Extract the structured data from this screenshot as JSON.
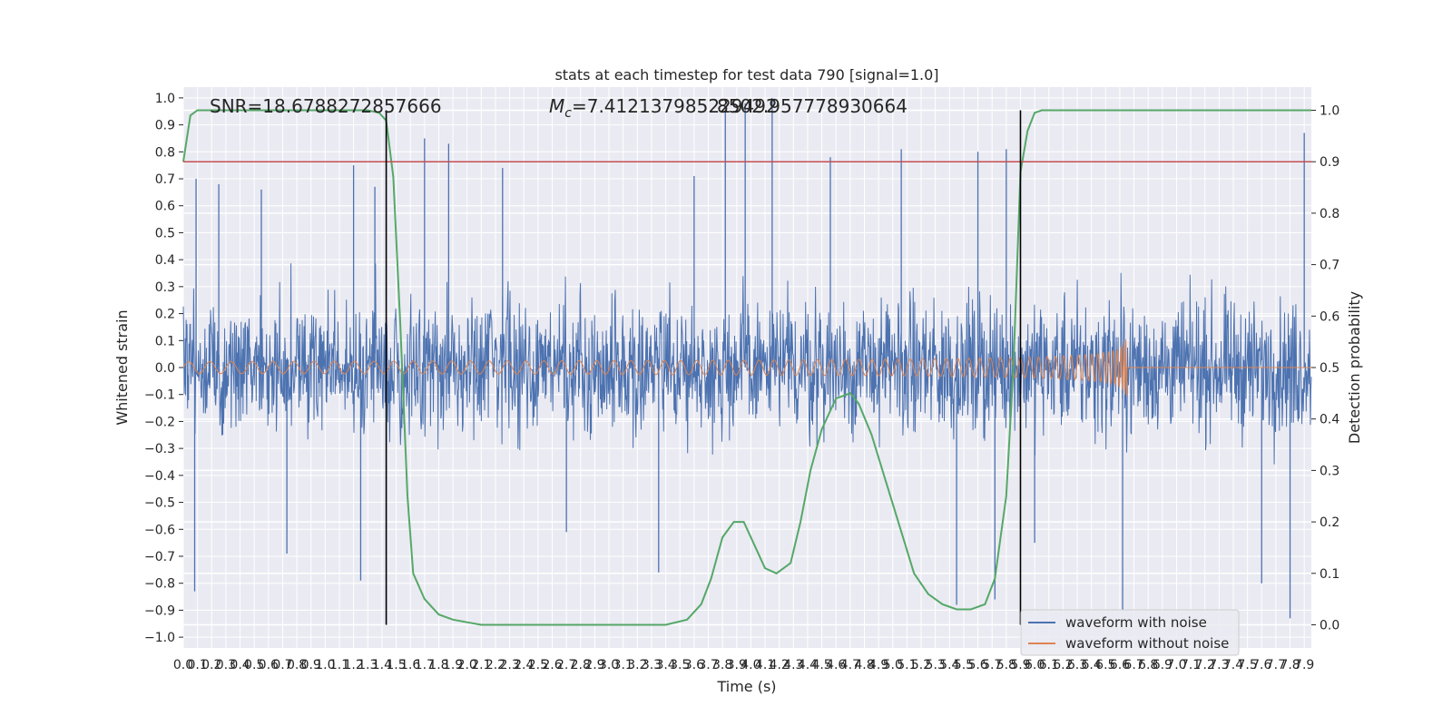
{
  "chart_data": {
    "type": "line",
    "title": "stats at each timestep for test data 790 [signal=1.0]",
    "xlabel": "Time (s)",
    "ylabel": "Whitened strain",
    "y2label": "Detection probability",
    "xlim": [
      0.0,
      7.95
    ],
    "ylim": [
      -1.04,
      1.04
    ],
    "y2lim": [
      -0.045,
      1.045
    ],
    "x_ticks": [
      "0.0",
      "0.1",
      "0.2",
      "0.3",
      "0.4",
      "0.5",
      "0.6",
      "0.7",
      "0.8",
      "0.9",
      "1.0",
      "1.1",
      "1.2",
      "1.3",
      "1.4",
      "1.5",
      "1.6",
      "1.7",
      "1.8",
      "1.9",
      "2.0",
      "2.1",
      "2.2",
      "2.3",
      "2.4",
      "2.5",
      "2.6",
      "2.7",
      "2.8",
      "2.9",
      "3.0",
      "3.1",
      "3.2",
      "3.3",
      "3.4",
      "3.5",
      "3.6",
      "3.7",
      "3.8",
      "3.9",
      "4.0",
      "4.1",
      "4.2",
      "4.3",
      "4.4",
      "4.5",
      "4.6",
      "4.7",
      "4.8",
      "4.9",
      "5.0",
      "5.1",
      "5.2",
      "5.3",
      "5.4",
      "5.5",
      "5.6",
      "5.7",
      "5.8",
      "5.9",
      "6.0",
      "6.1",
      "6.2",
      "6.3",
      "6.4",
      "6.5",
      "6.6",
      "6.7",
      "6.8",
      "6.9",
      "7.0",
      "7.1",
      "7.2",
      "7.3",
      "7.4",
      "7.5",
      "7.6",
      "7.7",
      "7.8",
      "7.9"
    ],
    "y_ticks": [
      "1.0",
      "0.9",
      "0.8",
      "0.7",
      "0.6",
      "0.5",
      "0.4",
      "0.3",
      "0.2",
      "0.1",
      "0.0",
      "−0.1",
      "−0.2",
      "−0.3",
      "−0.4",
      "−0.5",
      "−0.6",
      "−0.7",
      "−0.8",
      "−0.9",
      "−1.0"
    ],
    "y2_ticks": [
      "1.0",
      "0.9",
      "0.8",
      "0.7",
      "0.6",
      "0.5",
      "0.4",
      "0.3",
      "0.2",
      "0.1",
      "0.0"
    ],
    "annotations": {
      "snr": "SNR=18.6788272857666",
      "mc_symbol": "M",
      "mc_sub": "c",
      "mc_value": "=7.412137985229492",
      "overlap": "8502.957778930664"
    },
    "threshold": 0.9,
    "vlines_x": [
      1.43,
      5.9
    ],
    "merger_time": 6.65,
    "noise_peaks": [
      {
        "x": 0.08,
        "y": -0.83
      },
      {
        "x": 0.09,
        "y": 0.7
      },
      {
        "x": 0.25,
        "y": 0.68
      },
      {
        "x": 0.55,
        "y": 0.66
      },
      {
        "x": 0.73,
        "y": -0.69
      },
      {
        "x": 1.2,
        "y": 0.75
      },
      {
        "x": 1.25,
        "y": -0.79
      },
      {
        "x": 1.35,
        "y": 0.67
      },
      {
        "x": 1.7,
        "y": 0.85
      },
      {
        "x": 1.87,
        "y": 0.83
      },
      {
        "x": 2.25,
        "y": 0.74
      },
      {
        "x": 2.7,
        "y": -0.61
      },
      {
        "x": 3.35,
        "y": -0.76
      },
      {
        "x": 3.6,
        "y": 0.71
      },
      {
        "x": 3.82,
        "y": 0.95
      },
      {
        "x": 3.96,
        "y": 0.98
      },
      {
        "x": 4.15,
        "y": 1.0
      },
      {
        "x": 4.56,
        "y": 0.78
      },
      {
        "x": 5.06,
        "y": 0.81
      },
      {
        "x": 5.45,
        "y": -0.88
      },
      {
        "x": 5.6,
        "y": 0.8
      },
      {
        "x": 5.72,
        "y": -0.86
      },
      {
        "x": 5.8,
        "y": 0.81
      },
      {
        "x": 6.0,
        "y": -0.65
      },
      {
        "x": 6.62,
        "y": -0.9
      },
      {
        "x": 7.6,
        "y": -0.8
      },
      {
        "x": 7.8,
        "y": -0.93
      },
      {
        "x": 7.9,
        "y": 0.87
      }
    ],
    "detection_probability": {
      "x": [
        0.0,
        0.05,
        0.1,
        0.2,
        0.4,
        0.8,
        1.1,
        1.3,
        1.38,
        1.43,
        1.48,
        1.53,
        1.58,
        1.62,
        1.7,
        1.8,
        1.9,
        2.0,
        2.1,
        2.3,
        2.6,
        3.0,
        3.4,
        3.55,
        3.65,
        3.72,
        3.8,
        3.88,
        3.95,
        4.0,
        4.1,
        4.18,
        4.28,
        4.35,
        4.42,
        4.5,
        4.6,
        4.7,
        4.76,
        4.85,
        4.95,
        5.05,
        5.15,
        5.25,
        5.35,
        5.45,
        5.55,
        5.65,
        5.72,
        5.8,
        5.85,
        5.9,
        5.95,
        6.0,
        6.05,
        6.1,
        6.2,
        6.4,
        7.0,
        7.95
      ],
      "y": [
        0.9,
        0.99,
        1.0,
        1.0,
        1.0,
        1.0,
        1.0,
        1.0,
        0.995,
        0.98,
        0.87,
        0.58,
        0.25,
        0.1,
        0.05,
        0.02,
        0.01,
        0.005,
        0.0,
        0.0,
        0.0,
        0.0,
        0.0,
        0.01,
        0.04,
        0.09,
        0.17,
        0.2,
        0.2,
        0.17,
        0.11,
        0.1,
        0.12,
        0.2,
        0.3,
        0.38,
        0.44,
        0.45,
        0.43,
        0.37,
        0.28,
        0.19,
        0.1,
        0.06,
        0.04,
        0.03,
        0.03,
        0.04,
        0.09,
        0.25,
        0.5,
        0.88,
        0.96,
        0.995,
        1.0,
        1.0,
        1.0,
        1.0,
        1.0,
        1.0
      ]
    },
    "series": [
      {
        "name": "waveform with noise",
        "color": "#4c72b0"
      },
      {
        "name": "waveform without noise",
        "color": "#dd8452"
      }
    ],
    "line_colors": {
      "probability": "#55a868",
      "threshold": "#c44e52",
      "markers": "#000000"
    },
    "grid": true,
    "legend_position": "lower right"
  }
}
